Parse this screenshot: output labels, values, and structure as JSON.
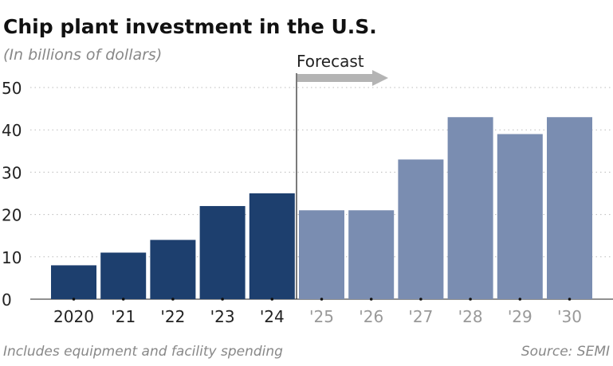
{
  "chart_data": {
    "type": "bar",
    "title": "Chip plant investment in the U.S.",
    "subtitle": "(In billions of dollars)",
    "categories": [
      "2020",
      "'21",
      "'22",
      "'23",
      "'24",
      "'25",
      "'26",
      "'27",
      "'28",
      "'29",
      "'30"
    ],
    "values": [
      8,
      11,
      14,
      22,
      25,
      21,
      21,
      33,
      43,
      39,
      43
    ],
    "forecast_from": "'25",
    "annotation": "Forecast",
    "ylim": [
      0,
      50
    ],
    "yticks": [
      0,
      10,
      20,
      30,
      40,
      50
    ],
    "grid": true,
    "xlabel": "",
    "ylabel": "",
    "colors": {
      "actual": "#1d3f6e",
      "forecast": "#7a8db1",
      "arrow": "#b4b4b4",
      "forecast_label": "#999999"
    },
    "note": "Includes equipment and facility spending",
    "source": "Source: SEMI"
  }
}
